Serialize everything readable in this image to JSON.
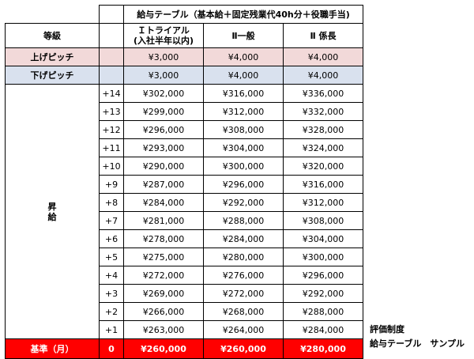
{
  "table": {
    "title": "給与テーブル（基本給＋固定残業代40h分＋役職手当)",
    "header": {
      "grade_label": "等級",
      "grade1_line1": "Ｉトライアル",
      "grade1_line2": "(入社半年以内)",
      "grade2": "Ⅱ一般",
      "grade3": "Ⅱ 係長"
    },
    "pitch_up": {
      "label": "上げピッチ",
      "values": [
        "¥3,000",
        "¥4,000",
        "¥4,000"
      ]
    },
    "pitch_down": {
      "label": "下げピッチ",
      "values": [
        "¥3,000",
        "¥4,000",
        "¥4,000"
      ]
    },
    "promotion_label_1": "昇",
    "promotion_label_2": "給",
    "steps": [
      {
        "step": "+14",
        "values": [
          "¥302,000",
          "¥316,000",
          "¥336,000"
        ]
      },
      {
        "step": "+13",
        "values": [
          "¥299,000",
          "¥312,000",
          "¥332,000"
        ]
      },
      {
        "step": "+12",
        "values": [
          "¥296,000",
          "¥308,000",
          "¥328,000"
        ]
      },
      {
        "step": "+11",
        "values": [
          "¥293,000",
          "¥304,000",
          "¥324,000"
        ]
      },
      {
        "step": "+10",
        "values": [
          "¥290,000",
          "¥300,000",
          "¥320,000"
        ]
      },
      {
        "step": "+9",
        "values": [
          "¥287,000",
          "¥296,000",
          "¥316,000"
        ]
      },
      {
        "step": "+8",
        "values": [
          "¥284,000",
          "¥292,000",
          "¥312,000"
        ]
      },
      {
        "step": "+7",
        "values": [
          "¥281,000",
          "¥288,000",
          "¥308,000"
        ]
      },
      {
        "step": "+6",
        "values": [
          "¥278,000",
          "¥284,000",
          "¥304,000"
        ]
      },
      {
        "step": "+5",
        "values": [
          "¥275,000",
          "¥280,000",
          "¥300,000"
        ]
      },
      {
        "step": "+4",
        "values": [
          "¥272,000",
          "¥276,000",
          "¥296,000"
        ]
      },
      {
        "step": "+3",
        "values": [
          "¥269,000",
          "¥272,000",
          "¥292,000"
        ]
      },
      {
        "step": "+2",
        "values": [
          "¥266,000",
          "¥268,000",
          "¥288,000"
        ]
      },
      {
        "step": "+1",
        "values": [
          "¥263,000",
          "¥264,000",
          "¥284,000"
        ]
      }
    ],
    "base": {
      "label": "基準（月）",
      "step": "0",
      "values": [
        "¥260,000",
        "¥260,000",
        "¥280,000"
      ]
    }
  },
  "colors": {
    "pitch_up_bg": "#f2d9d9",
    "pitch_down_bg": "#d9e1ee",
    "base_bg": "#ff0000"
  },
  "note": {
    "line1": "評価制度",
    "line2": "給与テーブル　サンプル"
  }
}
